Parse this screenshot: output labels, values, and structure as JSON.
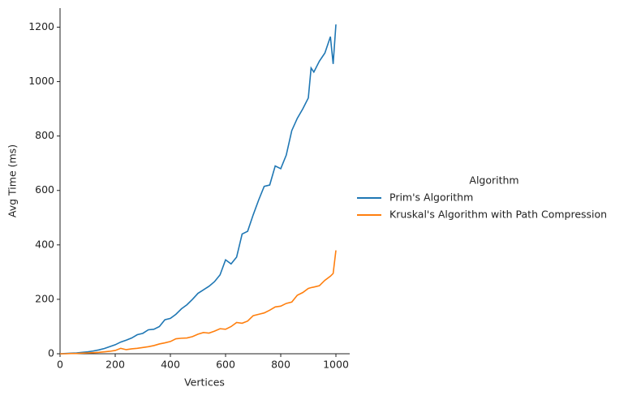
{
  "chart_data": {
    "type": "line",
    "xlabel": "Vertices",
    "ylabel": "Avg Time (ms)",
    "x": [
      0,
      20,
      40,
      60,
      80,
      100,
      120,
      140,
      160,
      180,
      200,
      220,
      240,
      260,
      280,
      300,
      320,
      340,
      360,
      380,
      400,
      420,
      440,
      460,
      480,
      500,
      520,
      540,
      560,
      580,
      600,
      620,
      640,
      660,
      680,
      700,
      720,
      740,
      760,
      780,
      800,
      820,
      840,
      860,
      880,
      900,
      910,
      920,
      940,
      960,
      980,
      990,
      1000
    ],
    "series": [
      {
        "name": "Prim's Algorithm",
        "color": "#1f77b4",
        "values": [
          0,
          1,
          2,
          3,
          5,
          7,
          10,
          14,
          19,
          26,
          33,
          43,
          50,
          58,
          70,
          75,
          88,
          90,
          100,
          125,
          130,
          145,
          165,
          180,
          200,
          222,
          235,
          248,
          265,
          290,
          345,
          330,
          355,
          440,
          450,
          510,
          565,
          615,
          620,
          690,
          680,
          730,
          820,
          865,
          900,
          940,
          1050,
          1035,
          1075,
          1105,
          1165,
          1065,
          1210
        ]
      },
      {
        "name": "Kruskal's Algorithm with Path Compression",
        "color": "#ff7f0e",
        "values": [
          0,
          0,
          1,
          1,
          2,
          3,
          4,
          5,
          7,
          9,
          12,
          20,
          15,
          18,
          20,
          23,
          26,
          30,
          36,
          40,
          45,
          55,
          57,
          58,
          63,
          72,
          78,
          76,
          83,
          92,
          90,
          100,
          115,
          112,
          120,
          140,
          145,
          150,
          160,
          172,
          175,
          185,
          190,
          215,
          225,
          240,
          243,
          245,
          250,
          270,
          285,
          295,
          380
        ]
      }
    ],
    "xlim": [
      0,
      1050
    ],
    "xticks": [
      0,
      200,
      400,
      600,
      800,
      1000
    ],
    "ylim": [
      0,
      1270
    ],
    "yticks": [
      0,
      200,
      400,
      600,
      800,
      1000,
      1200
    ],
    "legend_title": "Algorithm",
    "legend": "right"
  }
}
